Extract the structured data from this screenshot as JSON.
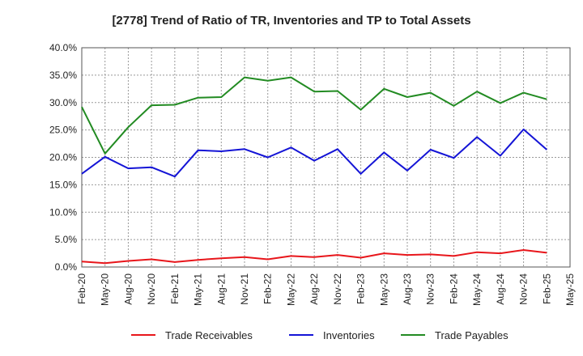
{
  "chart_data": {
    "type": "line",
    "title": "[2778]  Trend of Ratio of TR, Inventories and TP to Total Assets",
    "xlabel": "",
    "ylabel": "",
    "categories": [
      "Feb-20",
      "May-20",
      "Aug-20",
      "Nov-20",
      "Feb-21",
      "May-21",
      "Aug-21",
      "Nov-21",
      "Feb-22",
      "May-22",
      "Aug-22",
      "Nov-22",
      "Feb-23",
      "May-23",
      "Aug-23",
      "Nov-23",
      "Feb-24",
      "May-24",
      "Aug-24",
      "Nov-24",
      "Feb-25",
      "May-25"
    ],
    "ylim": [
      0,
      40
    ],
    "yticks": [
      "0.0%",
      "5.0%",
      "10.0%",
      "15.0%",
      "20.0%",
      "25.0%",
      "30.0%",
      "35.0%",
      "40.0%"
    ],
    "grid": true,
    "legend_position": "bottom",
    "series": [
      {
        "name": "Trade Receivables",
        "color": "#e8161b",
        "values": [
          1.0,
          0.7,
          1.1,
          1.4,
          0.9,
          1.3,
          1.6,
          1.8,
          1.4,
          2.0,
          1.8,
          2.2,
          1.7,
          2.5,
          2.2,
          2.3,
          2.0,
          2.7,
          2.5,
          3.1,
          2.6,
          null
        ]
      },
      {
        "name": "Inventories",
        "color": "#1414d6",
        "values": [
          17.0,
          20.1,
          18.0,
          18.2,
          16.5,
          21.3,
          21.1,
          21.5,
          20.0,
          21.8,
          19.4,
          21.5,
          17.0,
          20.9,
          17.6,
          21.4,
          19.9,
          23.7,
          20.3,
          25.1,
          21.4,
          null
        ]
      },
      {
        "name": "Trade Payables",
        "color": "#228b22",
        "values": [
          29.2,
          20.7,
          25.5,
          29.5,
          29.6,
          30.9,
          31.0,
          34.6,
          34.0,
          34.6,
          32.0,
          32.1,
          28.7,
          32.5,
          31.0,
          31.8,
          29.4,
          32.0,
          29.9,
          31.8,
          30.6,
          null
        ]
      }
    ]
  }
}
